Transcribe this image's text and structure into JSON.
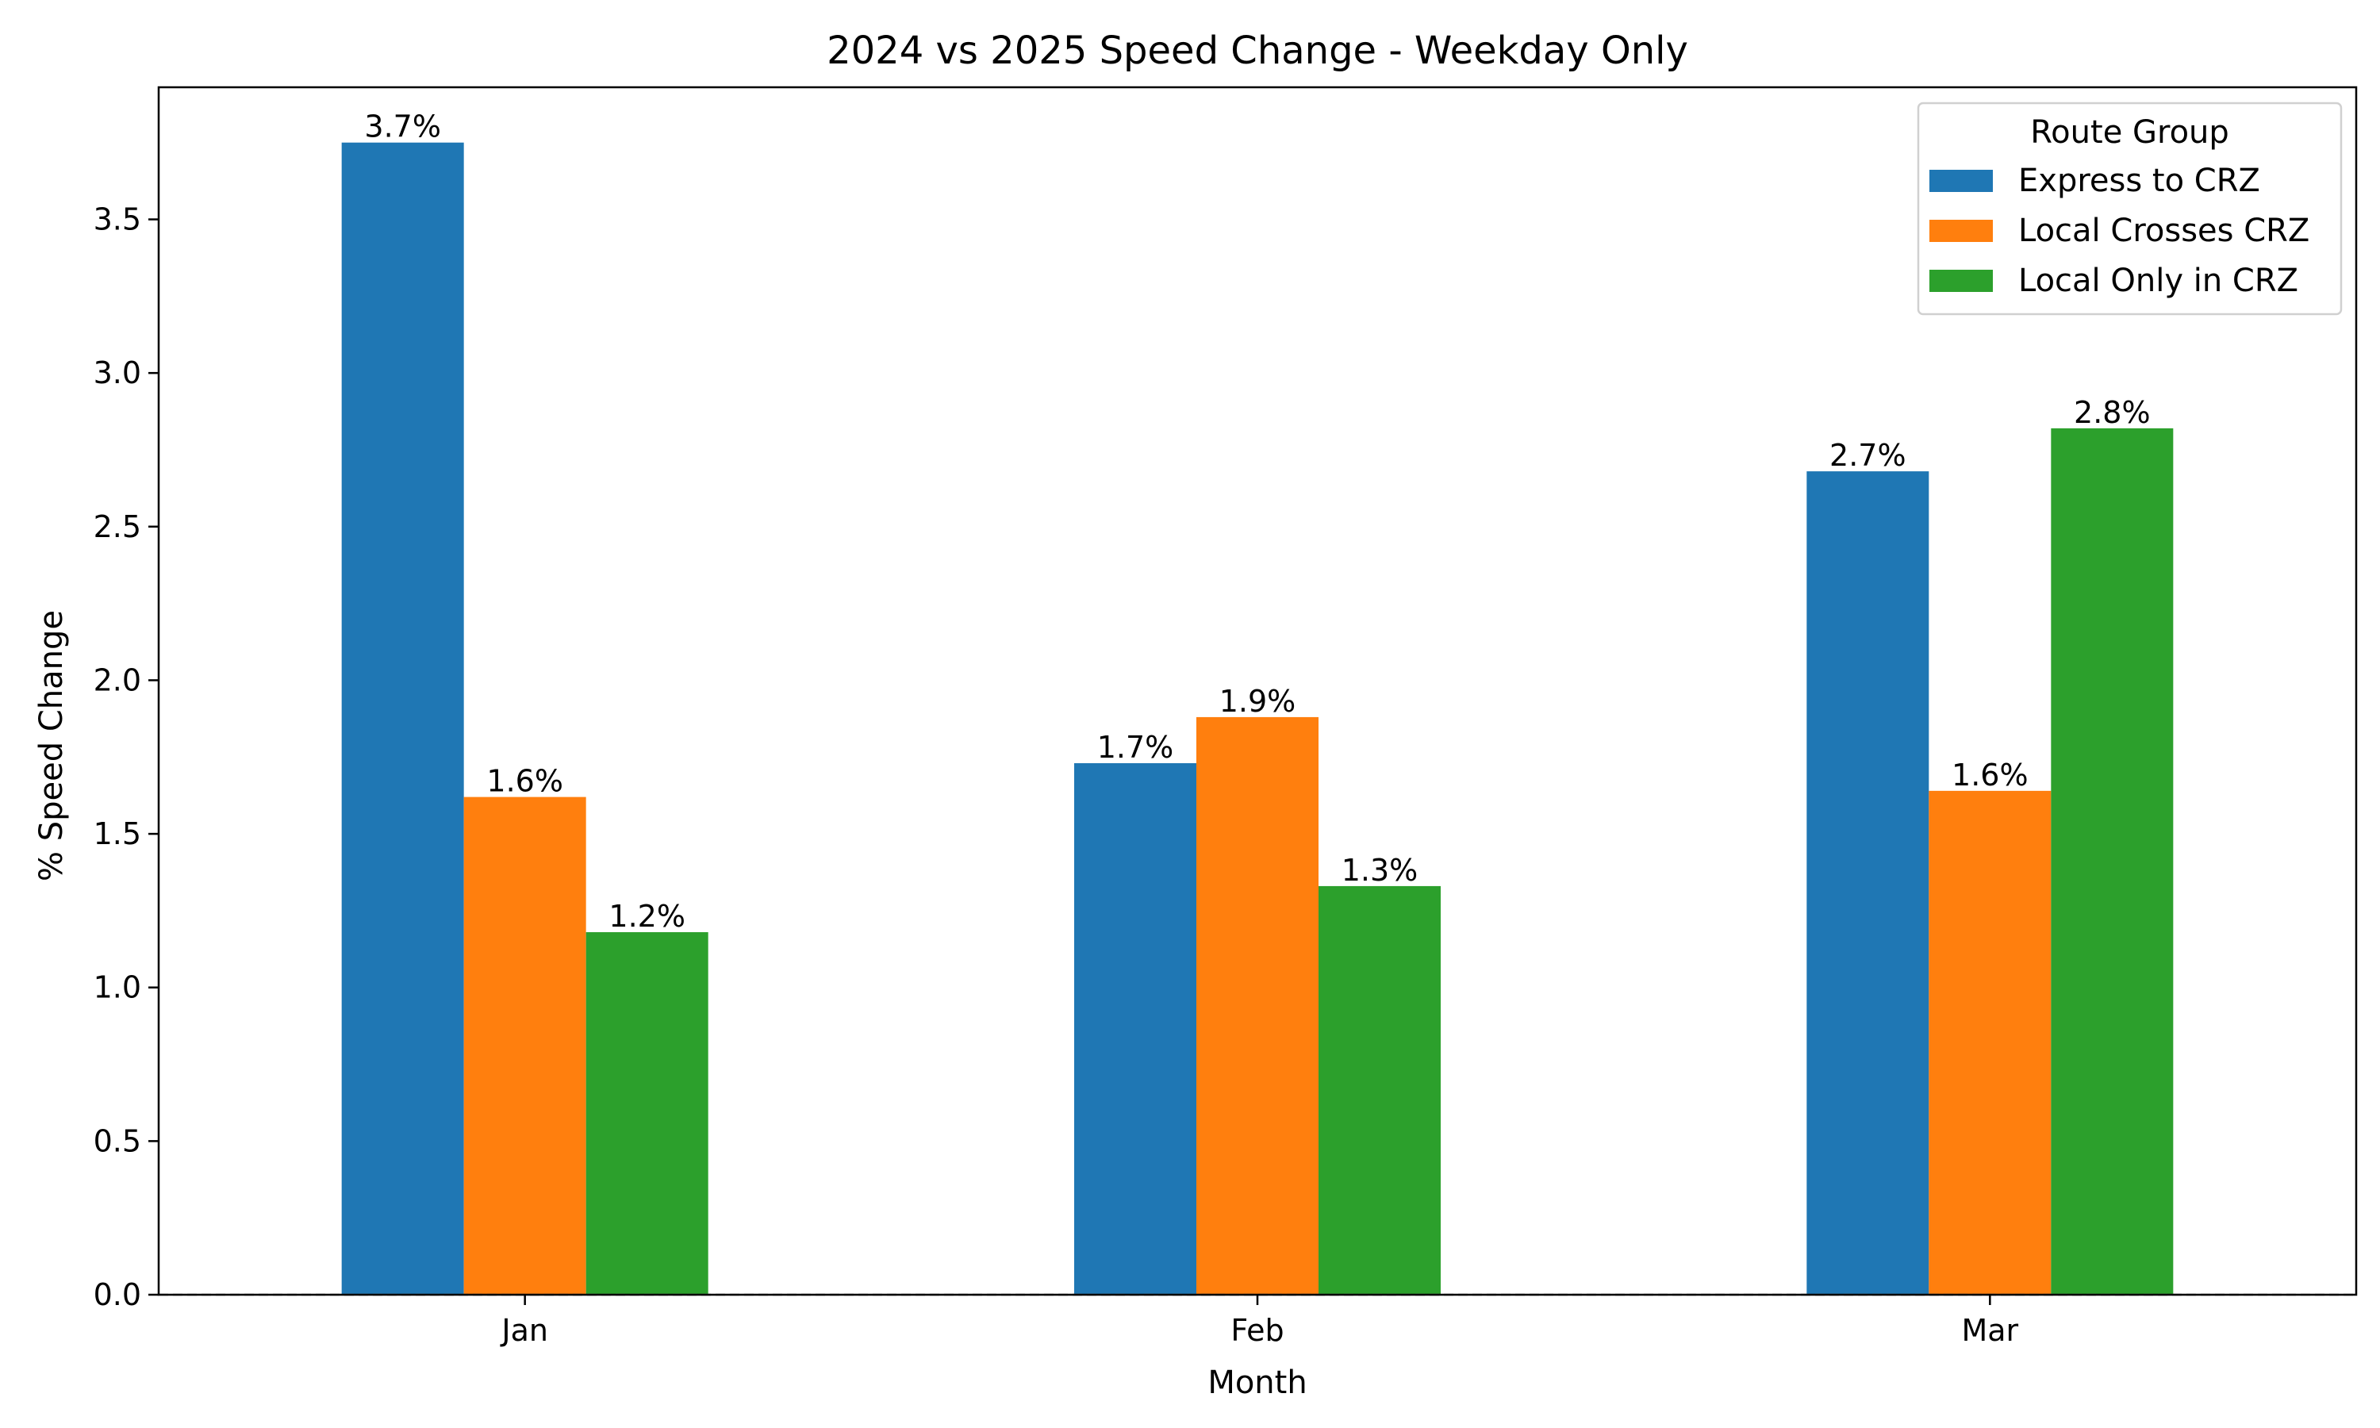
{
  "chart_data": {
    "type": "bar",
    "title": "2024 vs 2025 Speed Change - Weekday Only",
    "xlabel": "Month",
    "ylabel": "% Speed Change",
    "categories": [
      "Jan",
      "Feb",
      "Mar"
    ],
    "ylim": [
      0,
      3.93
    ],
    "yticks": [
      0.0,
      0.5,
      1.0,
      1.5,
      2.0,
      2.5,
      3.0,
      3.5
    ],
    "ytick_labels": [
      "0.0",
      "0.5",
      "1.0",
      "1.5",
      "2.0",
      "2.5",
      "3.0",
      "3.5"
    ],
    "grid": false,
    "zero_line": "dashed",
    "legend": {
      "title": "Route Group",
      "placement": "top-right"
    },
    "series": [
      {
        "name": "Express to CRZ",
        "color": "#1f77b4",
        "values": [
          3.75,
          1.73,
          2.68
        ],
        "labels": [
          "3.7%",
          "1.7%",
          "2.7%"
        ]
      },
      {
        "name": "Local Crosses CRZ",
        "color": "#ff7f0e",
        "values": [
          1.62,
          1.88,
          1.64
        ],
        "labels": [
          "1.6%",
          "1.9%",
          "1.6%"
        ]
      },
      {
        "name": "Local Only in CRZ",
        "color": "#2ca02c",
        "values": [
          1.18,
          1.33,
          2.82
        ],
        "labels": [
          "1.2%",
          "1.3%",
          "2.8%"
        ]
      }
    ]
  }
}
